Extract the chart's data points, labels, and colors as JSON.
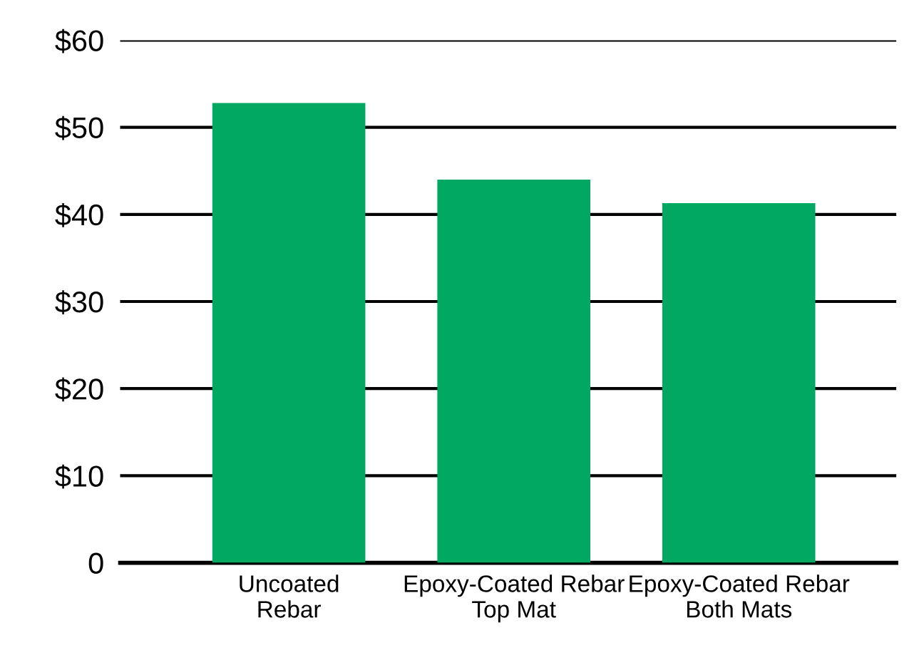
{
  "chart_data": {
    "type": "bar",
    "categories": [
      "Uncoated\nRebar",
      "Epoxy-Coated Rebar\nTop Mat",
      "Epoxy-Coated Rebar\nBoth Mats"
    ],
    "values": [
      52.8,
      44.0,
      41.3
    ],
    "color": "#00a862",
    "ylim": [
      0,
      60
    ],
    "yticks": [
      {
        "value": 0,
        "label": "0"
      },
      {
        "value": 10,
        "label": "$10"
      },
      {
        "value": 20,
        "label": "$20"
      },
      {
        "value": 30,
        "label": "$30"
      },
      {
        "value": 40,
        "label": "$40"
      },
      {
        "value": 50,
        "label": "$50"
      },
      {
        "value": 60,
        "label": "$60"
      }
    ],
    "grid": "y"
  }
}
